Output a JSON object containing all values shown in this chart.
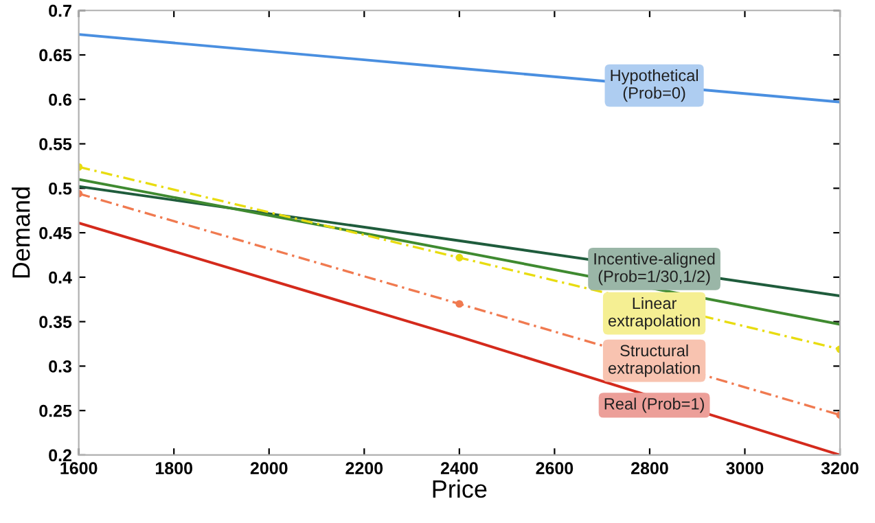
{
  "chart_data": {
    "type": "line",
    "xlabel": "Price",
    "ylabel": "Demand",
    "x": [
      1600,
      2400,
      3200
    ],
    "series": [
      {
        "name": "Hypothetical\n(Prob=0)",
        "color": "#4a8fe0",
        "values": [
          0.673,
          0.635,
          0.597
        ]
      },
      {
        "name": "Incentive-aligned\n(Prob=1/30,1/2)",
        "color": "#1f5c3c",
        "values": [
          0.502,
          0.441,
          0.379
        ]
      },
      {
        "color": "#3f8a30",
        "values": [
          0.51,
          0.429,
          0.347
        ]
      },
      {
        "name": "Linear\nextrapolation",
        "color": "#e8dc10",
        "values": [
          0.524,
          0.422,
          0.319
        ],
        "marker": "circle",
        "line_style": "dashed"
      },
      {
        "name": "Structural\nextrapolation",
        "color": "#f07a50",
        "values": [
          0.494,
          0.37,
          0.245
        ],
        "marker": "circle",
        "line_style": "dashed"
      },
      {
        "name": "Real (Prob=1)",
        "color": "#d42a1c",
        "values": [
          0.461,
          0.333,
          0.2
        ]
      }
    ],
    "xlim": [
      1600,
      3200
    ],
    "xticks": [
      1600,
      1800,
      2000,
      2200,
      2400,
      2600,
      2800,
      3000,
      3200
    ],
    "ylim": [
      0.2,
      0.7
    ],
    "yticks": [
      0.2,
      0.25,
      0.3,
      0.35,
      0.4,
      0.45,
      0.5,
      0.55,
      0.6,
      0.65,
      0.7
    ],
    "grid": false,
    "legend": "right"
  }
}
